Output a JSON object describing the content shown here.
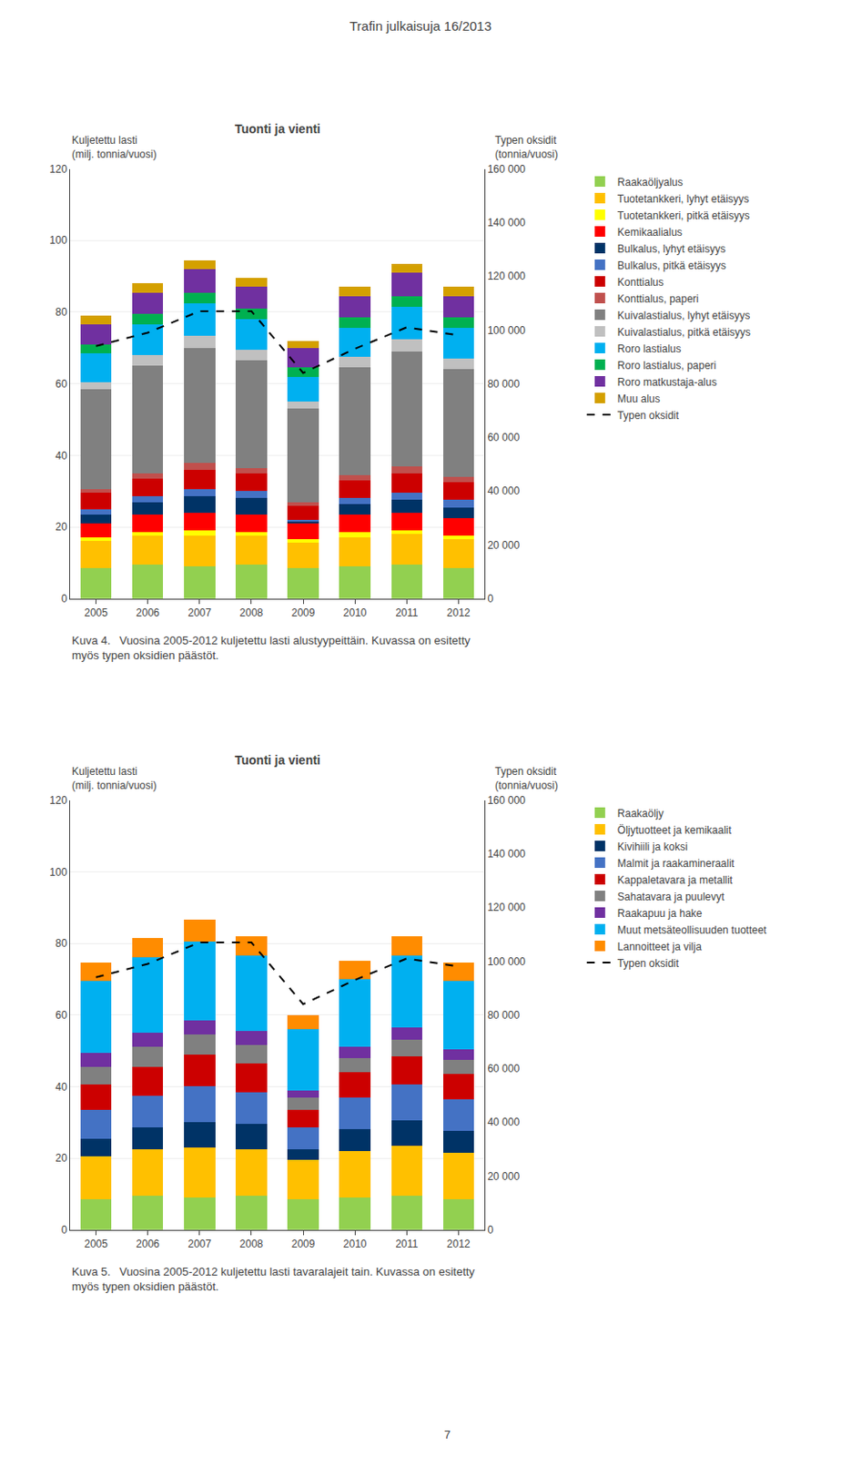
{
  "title": "Trafin julkaisuja 16/2013",
  "annotations": [
    "7"
  ],
  "chart_data": [
    {
      "type": "bar",
      "stacked": true,
      "title": "Tuonti ja vienti",
      "ylabel": "Kuljetettu lasti\n(milj. tonnia/vuosi)",
      "y2label": "Typen oksidit\n(tonnia/vuosi)",
      "annotations": [
        "Kuva 4.  Vuosina 2005-2012 kuljetettu lasti alustyypeittäin. Kuvassa on esitetty\nmyös typen oksidien päästöt."
      ],
      "categories": [
        "2005",
        "2006",
        "2007",
        "2008",
        "2009",
        "2010",
        "2011",
        "2012"
      ],
      "ylim": [
        0,
        120
      ],
      "yticks": [
        0,
        20,
        40,
        60,
        80,
        100,
        120
      ],
      "y2lim": [
        0,
        160000
      ],
      "y2ticks": [
        0,
        {
          "value": 20000,
          "label": "20 000"
        },
        {
          "value": 40000,
          "label": "40 000"
        },
        {
          "value": 60000,
          "label": "60 000"
        },
        {
          "value": 80000,
          "label": "80 000"
        },
        {
          "value": 100000,
          "label": "100 000"
        },
        {
          "value": 120000,
          "label": "120 000"
        },
        {
          "value": 140000,
          "label": "140 000"
        },
        {
          "value": 160000,
          "label": "160 000"
        }
      ],
      "grid": true,
      "legend": "right",
      "series": [
        {
          "name": "Raakaöljyalus",
          "color": "#92D050",
          "values": [
            8.5,
            9.5,
            9.0,
            9.5,
            8.5,
            9.0,
            9.5,
            8.5
          ]
        },
        {
          "name": "Tuotetankkeri, lyhyt etäisyys",
          "color": "#FFC000",
          "values": [
            7.5,
            8.0,
            8.5,
            8.0,
            7.0,
            8.0,
            8.5,
            8.0
          ]
        },
        {
          "name": "Tuotetankkeri, pitkä etäisyys",
          "color": "#FFFF00",
          "values": [
            1.0,
            1.0,
            1.5,
            1.0,
            1.0,
            1.5,
            1.0,
            1.0
          ]
        },
        {
          "name": "Kemikaalialus",
          "color": "#FF0000",
          "values": [
            4.0,
            5.0,
            5.0,
            5.0,
            4.5,
            5.0,
            5.0,
            5.0
          ]
        },
        {
          "name": "Bulkalus, lyhyt etäisyys",
          "color": "#003366",
          "values": [
            2.5,
            3.5,
            4.5,
            4.5,
            0.5,
            3.0,
            3.5,
            3.0
          ]
        },
        {
          "name": "Bulkalus, pitkä etäisyys",
          "color": "#4472C4",
          "values": [
            1.5,
            1.5,
            2.0,
            2.0,
            0.5,
            1.5,
            2.0,
            2.0
          ]
        },
        {
          "name": "Konttialus",
          "color": "#CC0000",
          "values": [
            4.5,
            5.0,
            5.5,
            5.0,
            4.0,
            5.0,
            5.5,
            5.0
          ]
        },
        {
          "name": "Konttialus, paperi",
          "color": "#C0504D",
          "values": [
            1.0,
            1.5,
            2.0,
            1.5,
            1.0,
            1.5,
            2.0,
            1.5
          ]
        },
        {
          "name": "Kuivalastialus, lyhyt etäisyys",
          "color": "#808080",
          "values": [
            28.0,
            30.0,
            32.0,
            30.0,
            26.0,
            30.0,
            32.0,
            30.0
          ]
        },
        {
          "name": "Kuivalastialus, pitkä etäisyys",
          "color": "#C0C0C0",
          "values": [
            2.0,
            3.0,
            3.5,
            3.0,
            2.0,
            3.0,
            3.5,
            3.0
          ]
        },
        {
          "name": "Roro lastialus",
          "color": "#00B0F0",
          "values": [
            8.0,
            8.5,
            9.0,
            8.5,
            7.0,
            8.0,
            9.0,
            8.5
          ]
        },
        {
          "name": "Roro lastialus, paperi",
          "color": "#00B050",
          "values": [
            2.5,
            3.0,
            3.0,
            3.0,
            2.5,
            3.0,
            3.0,
            3.0
          ]
        },
        {
          "name": "Roro matkustaja-alus",
          "color": "#7030A0",
          "values": [
            5.5,
            6.0,
            6.5,
            6.0,
            5.5,
            6.0,
            6.5,
            6.0
          ]
        },
        {
          "name": "Muu alus",
          "color": "#D4A000",
          "values": [
            2.5,
            2.5,
            2.5,
            2.5,
            2.0,
            2.5,
            2.5,
            2.5
          ]
        },
        {
          "name": "Typen oksidit",
          "type": "line",
          "line_style": "dashed",
          "color": "#000000",
          "axis": "y2",
          "values": [
            94000,
            99000,
            107000,
            107000,
            84000,
            93000,
            101000,
            98000
          ]
        }
      ]
    },
    {
      "type": "bar",
      "stacked": true,
      "title": "Tuonti ja vienti",
      "ylabel": "Kuljetettu lasti\n(milj. tonnia/vuosi)",
      "y2label": "Typen oksidit\n(tonnia/vuosi)",
      "annotations": [
        "Kuva 5.  Vuosina 2005-2012 kuljetettu lasti tavaralajeit tain. Kuvassa on esitetty\nmyös typen oksidien päästöt."
      ],
      "categories": [
        "2005",
        "2006",
        "2007",
        "2008",
        "2009",
        "2010",
        "2011",
        "2012"
      ],
      "ylim": [
        0,
        120
      ],
      "yticks": [
        0,
        20,
        40,
        60,
        80,
        100,
        120
      ],
      "y2lim": [
        0,
        160000
      ],
      "y2ticks": [
        0,
        {
          "value": 20000,
          "label": "20 000"
        },
        {
          "value": 40000,
          "label": "40 000"
        },
        {
          "value": 60000,
          "label": "60 000"
        },
        {
          "value": 80000,
          "label": "80 000"
        },
        {
          "value": 100000,
          "label": "100 000"
        },
        {
          "value": 120000,
          "label": "120 000"
        },
        {
          "value": 140000,
          "label": "140 000"
        },
        {
          "value": 160000,
          "label": "160 000"
        }
      ],
      "grid": true,
      "legend": "right",
      "series": [
        {
          "name": "Raakaöljy",
          "color": "#92D050",
          "values": [
            8.5,
            9.5,
            9.0,
            9.5,
            8.5,
            9.0,
            9.5,
            8.5
          ]
        },
        {
          "name": "Öljytuotteet ja kemikaalit",
          "color": "#FFC000",
          "values": [
            12.0,
            13.0,
            14.0,
            13.0,
            11.0,
            13.0,
            14.0,
            13.0
          ]
        },
        {
          "name": "Kivihiili ja koksi",
          "color": "#003366",
          "values": [
            5.0,
            6.0,
            7.0,
            7.0,
            3.0,
            6.0,
            7.0,
            6.0
          ]
        },
        {
          "name": "Malmit ja raakamineraalit",
          "color": "#4472C4",
          "values": [
            8.0,
            9.0,
            10.0,
            9.0,
            6.0,
            9.0,
            10.0,
            9.0
          ]
        },
        {
          "name": "Kappaletavara ja metallit",
          "color": "#CC0000",
          "values": [
            7.0,
            8.0,
            9.0,
            8.0,
            5.0,
            7.0,
            8.0,
            7.0
          ]
        },
        {
          "name": "Sahatavara ja puulevyt",
          "color": "#808080",
          "values": [
            5.0,
            5.5,
            5.5,
            5.0,
            3.5,
            4.0,
            4.5,
            4.0
          ]
        },
        {
          "name": "Raakapuu ja hake",
          "color": "#7030A0",
          "values": [
            4.0,
            4.0,
            4.0,
            4.0,
            2.0,
            3.0,
            3.5,
            3.0
          ]
        },
        {
          "name": "Muut metsäteollisuuden tuotteet",
          "color": "#00B0F0",
          "values": [
            20.0,
            21.0,
            22.0,
            21.0,
            17.0,
            19.0,
            20.0,
            19.0
          ]
        },
        {
          "name": "Lannoitteet ja vilja",
          "color": "#FF8C00",
          "values": [
            5.0,
            5.5,
            6.0,
            5.5,
            4.0,
            5.0,
            5.5,
            5.0
          ]
        },
        {
          "name": "Typen oksidit",
          "type": "line",
          "line_style": "dashed",
          "color": "#000000",
          "axis": "y2",
          "values": [
            94000,
            99000,
            107000,
            107000,
            84000,
            93000,
            101000,
            98000
          ]
        }
      ]
    }
  ]
}
